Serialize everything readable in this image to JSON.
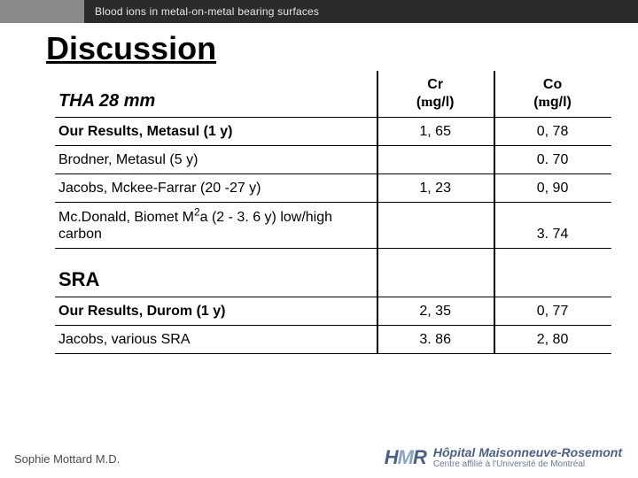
{
  "header": {
    "subtitle": "Blood ions in metal-on-metal bearing surfaces"
  },
  "title": "Discussion",
  "table": {
    "columns": {
      "col1_section1": "THA 28 mm",
      "col2_line1": "Cr",
      "col2_line2_prefix": "(",
      "col2_line2_mu": "m",
      "col2_line2_suffix": "g/l)",
      "col3_line1": "Co",
      "col3_line2_prefix": "(",
      "col3_line2_mu": "m",
      "col3_line2_suffix": "g/l)"
    },
    "rows": [
      {
        "label": "Our Results, Metasul (1 y)",
        "bold": true,
        "cr": "1, 65",
        "co": "0, 78"
      },
      {
        "label": "Brodner, Metasul (5 y)",
        "bold": false,
        "cr": "",
        "co": "0. 70"
      },
      {
        "label": "Jacobs, Mckee-Farrar (20 -27 y)",
        "bold": false,
        "cr": "1, 23",
        "co": "0, 90"
      },
      {
        "label_pre": "Mc.Donald, Biomet M",
        "label_sup": "2",
        "label_post": "a  (2 - 3. 6 y) low/high carbon",
        "bold": false,
        "cr": "",
        "co": "3. 74",
        "twoLine": true
      }
    ],
    "section2": "SRA",
    "rows2": [
      {
        "label": "Our Results, Durom (1 y)",
        "bold": true,
        "cr": "2, 35",
        "co": "0, 77"
      },
      {
        "label": "Jacobs, various SRA",
        "bold": false,
        "cr": "3. 86",
        "co": "2, 80"
      }
    ]
  },
  "footer": {
    "author": "Sophie Mottard M.D.",
    "logo_mark_a": "H",
    "logo_mark_b": "M",
    "logo_mark_c": "R",
    "logo_line1": "Hôpital Maisonneuve-Rosemont",
    "logo_line2": "Centre affilié à l'Université de Montréal"
  },
  "styling": {
    "header_gray": "#8b8989",
    "header_dark": "#2b2b2b",
    "text_color": "#000000",
    "border_color": "#000000",
    "footer_text": "#4a4a4a",
    "logo_blue": "#4a5f85",
    "logo_light": "#8aa4c8",
    "background": "#ffffff",
    "title_fontsize": 36,
    "body_fontsize": 16,
    "section_fontsize": 22
  }
}
